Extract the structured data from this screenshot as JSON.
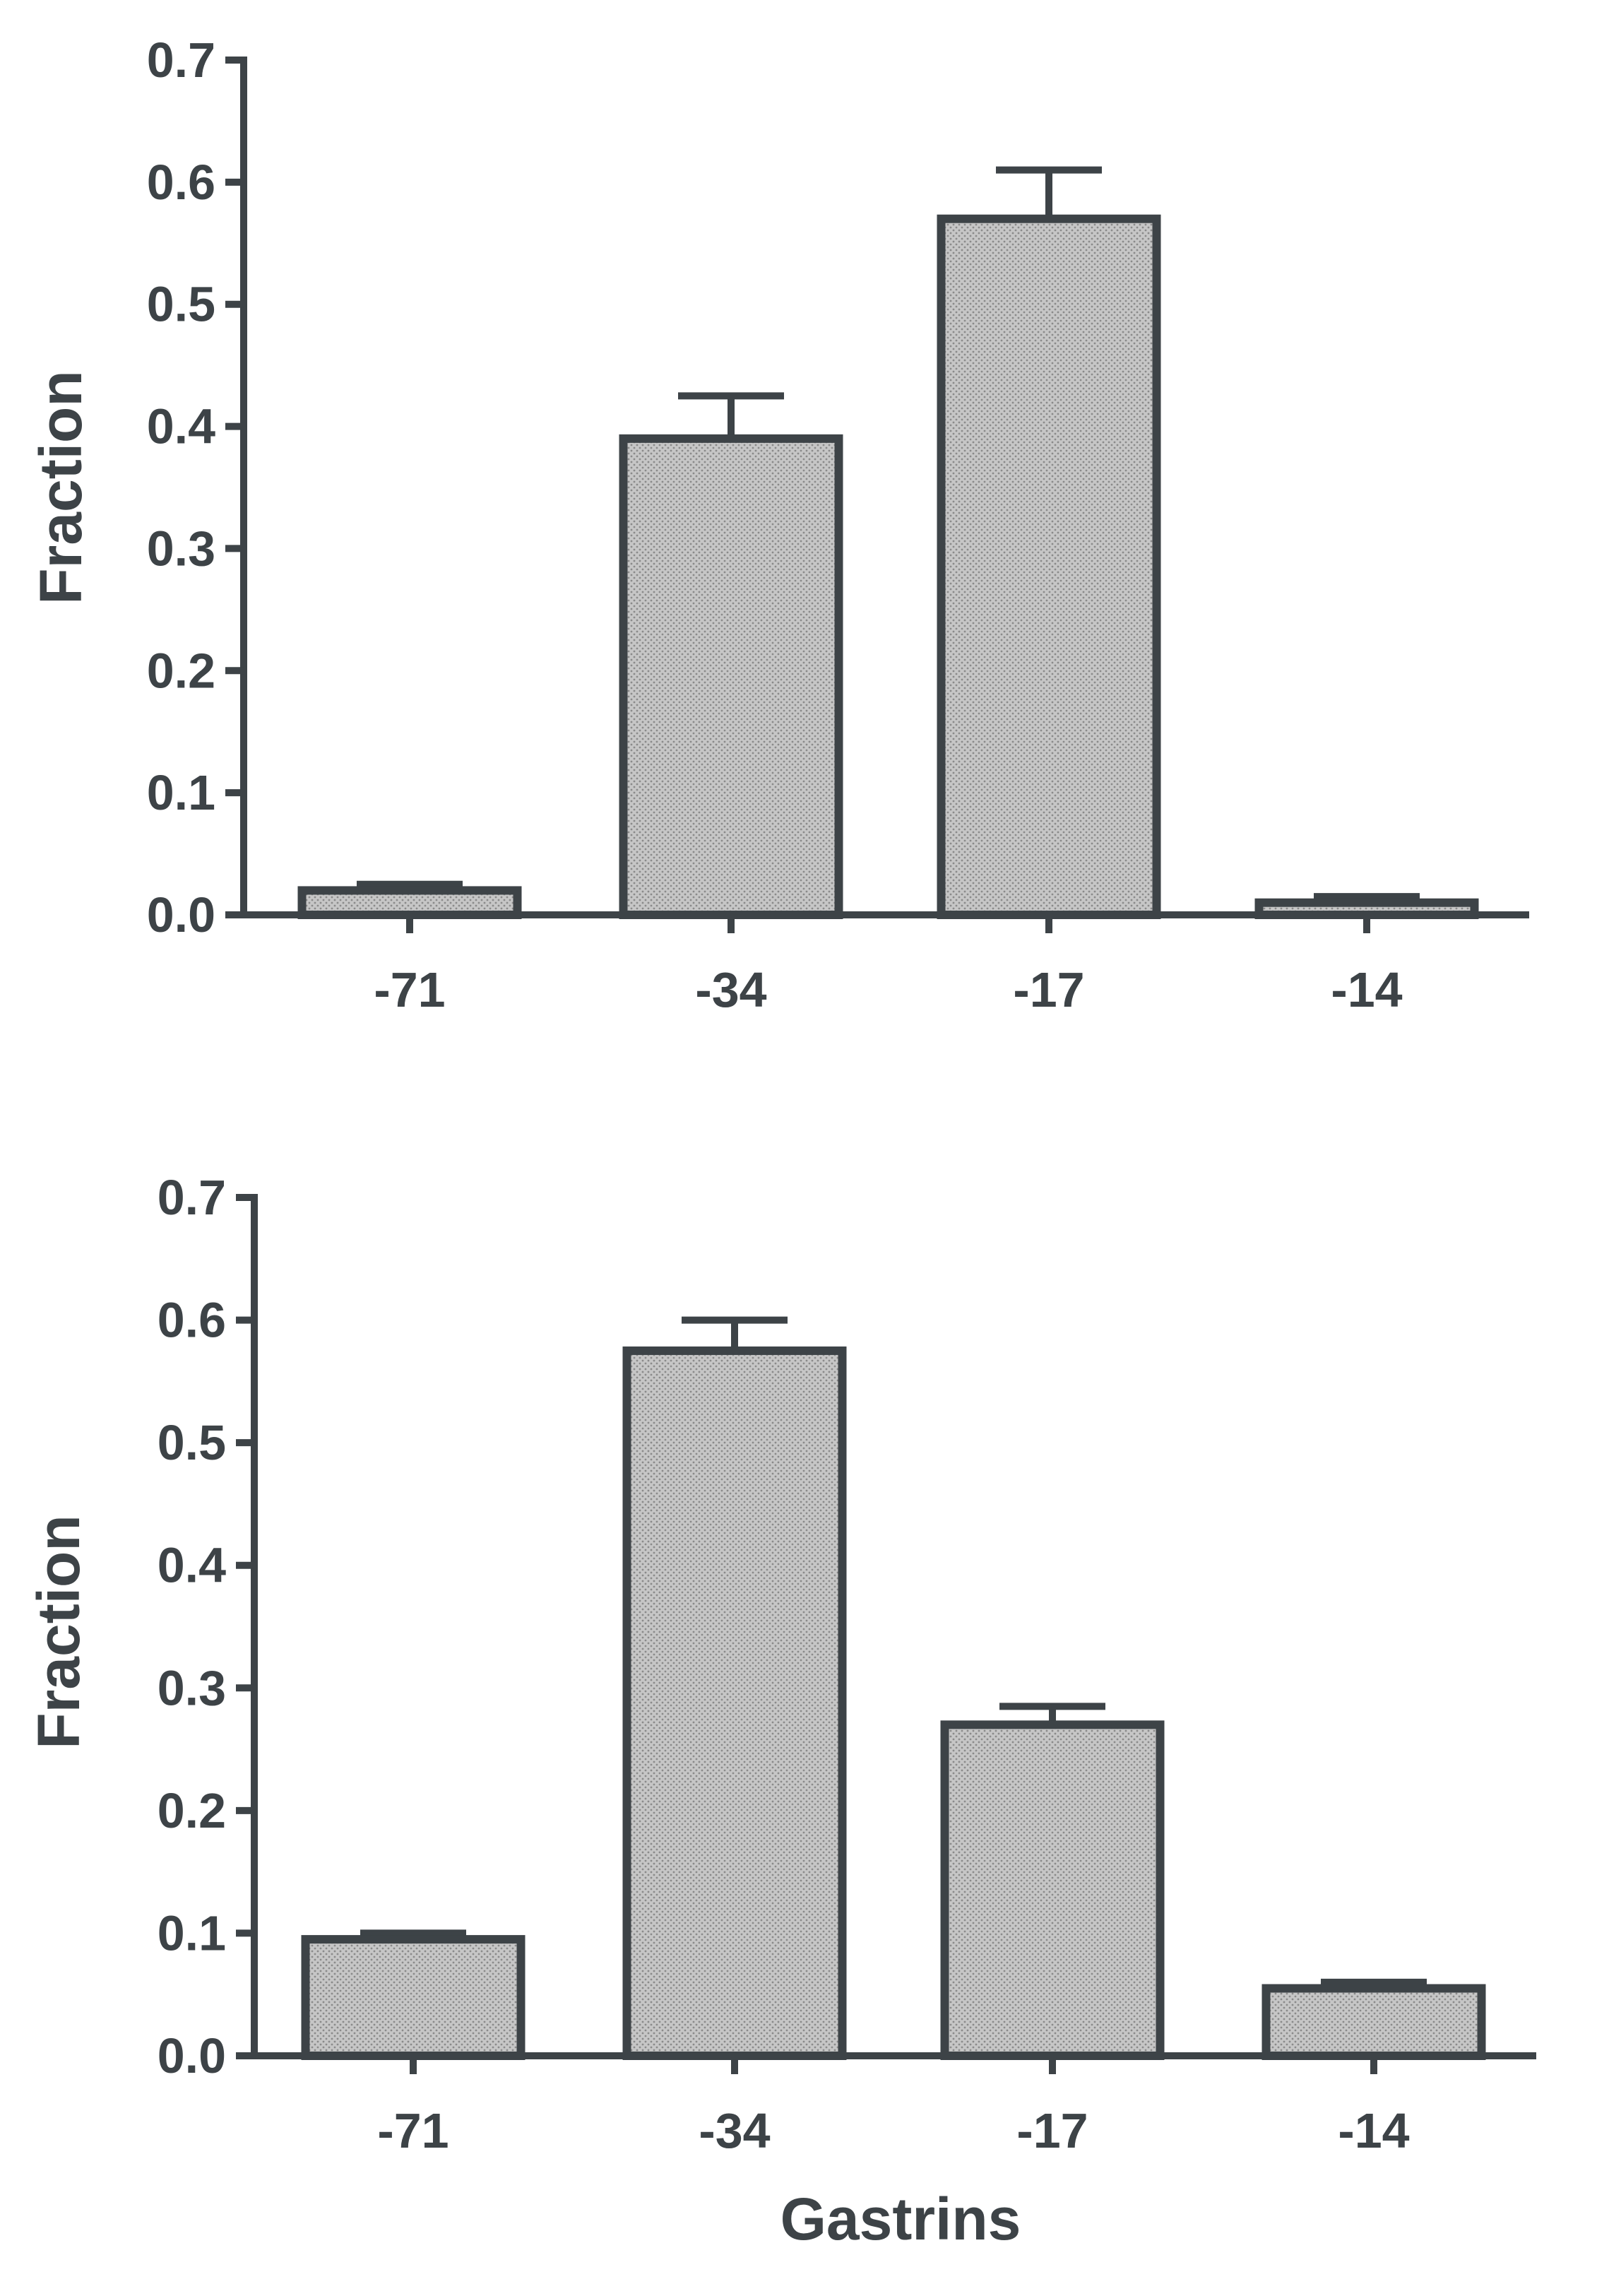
{
  "colors": {
    "ink": "#3d4347",
    "bar_fill": "#bdbdbd",
    "background": "#ffffff"
  },
  "chart_data": [
    {
      "type": "bar",
      "title": "",
      "xlabel": "",
      "ylabel": "Fraction",
      "ylim": [
        0,
        0.7
      ],
      "yticks": [
        "0.0",
        "0.1",
        "0.2",
        "0.3",
        "0.4",
        "0.5",
        "0.6",
        "0.7"
      ],
      "categories": [
        "-71",
        "-34",
        "-17",
        "-14"
      ],
      "values": [
        0.02,
        0.39,
        0.57,
        0.01
      ],
      "errors": [
        0.005,
        0.035,
        0.04,
        0.005
      ],
      "grid": false,
      "legend": "none"
    },
    {
      "type": "bar",
      "title": "",
      "xlabel": "Gastrins",
      "ylabel": "Fraction",
      "ylim": [
        0,
        0.7
      ],
      "yticks": [
        "0.0",
        "0.1",
        "0.2",
        "0.3",
        "0.4",
        "0.5",
        "0.6",
        "0.7"
      ],
      "categories": [
        "-71",
        "-34",
        "-17",
        "-14"
      ],
      "values": [
        0.095,
        0.575,
        0.27,
        0.055
      ],
      "errors": [
        0.005,
        0.025,
        0.015,
        0.005
      ],
      "grid": false,
      "legend": "none"
    }
  ]
}
